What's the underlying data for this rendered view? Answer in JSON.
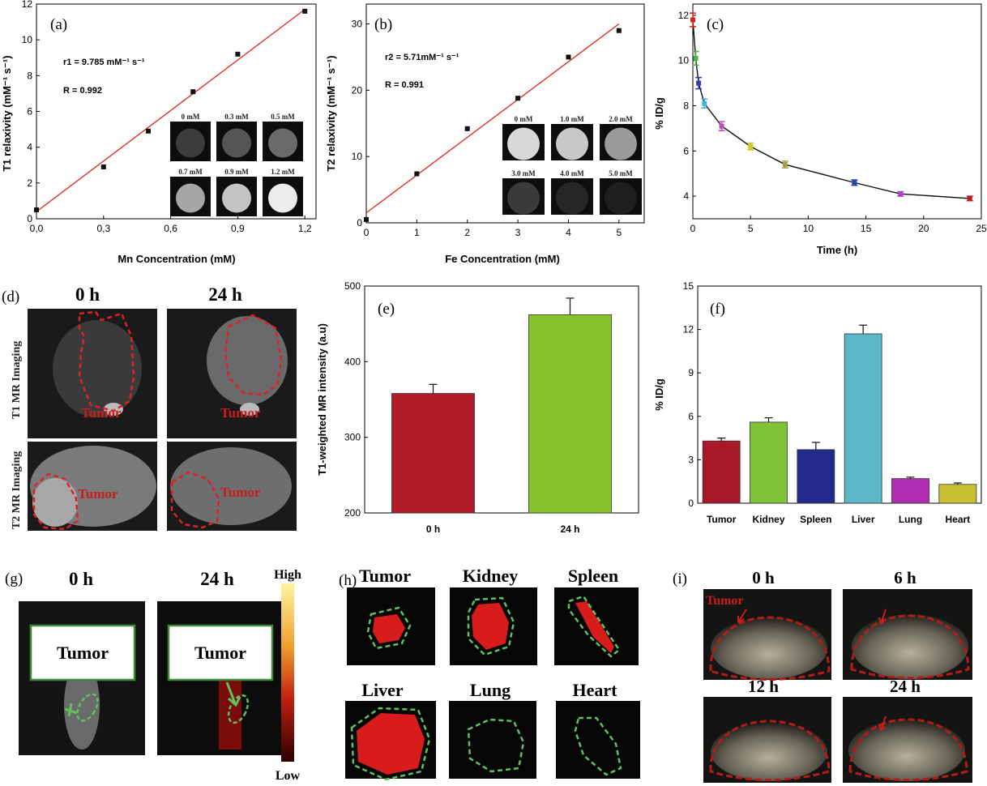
{
  "figure": {
    "panels": {
      "a": {
        "label": "(a)",
        "r_text": "r1 = 9.785 mM⁻¹ s⁻¹",
        "R_text": "R = 0.992",
        "insets": [
          "0 mM",
          "0.3 mM",
          "0.5 mM",
          "0.7 mM",
          "0.9 mM",
          "1.2 mM"
        ]
      },
      "b": {
        "label": "(b)",
        "r_text": "r2 = 5.71mM⁻¹ s⁻¹",
        "R_text": "R = 0.991",
        "insets": [
          "0 mM",
          "1.0 mM",
          "2.0 mM",
          "3.0 mM",
          "4.0 mM",
          "5.0 mM"
        ]
      },
      "c": {
        "label": "(c)"
      },
      "d": {
        "label": "(d)",
        "col0": "0 h",
        "col1": "24 h",
        "row0": "T1 MR Imaging",
        "row1": "T2 MR Imaging",
        "tumor": "Tumor"
      },
      "e": {
        "label": "(e)"
      },
      "f": {
        "label": "(f)"
      },
      "g": {
        "label": "(g)",
        "col0": "0 h",
        "col1": "24 h",
        "tumor": "Tumor",
        "high": "High",
        "low": "Low"
      },
      "h": {
        "label": "(h)",
        "organs": [
          "Tumor",
          "Kidney",
          "Spleen",
          "Liver",
          "Lung",
          "Heart"
        ]
      },
      "i": {
        "label": "(i)",
        "tumor": "Tumor",
        "times": [
          "0 h",
          "6 h",
          "12 h",
          "24 h"
        ]
      }
    }
  },
  "chart_data": [
    {
      "id": "a",
      "type": "scatter",
      "title": "",
      "xlabel": "Mn Concentration (mM)",
      "ylabel": "T1 relaxivity (mM⁻¹ s⁻¹)",
      "xlim": [
        0,
        1.25
      ],
      "ylim": [
        0,
        12
      ],
      "xticks": [
        0.0,
        0.3,
        0.6,
        0.9,
        1.2
      ],
      "xticklabels": [
        "0,0",
        "0,3",
        "0,6",
        "0,9",
        "1,2"
      ],
      "yticks": [
        0,
        2,
        4,
        6,
        8,
        10,
        12
      ],
      "x": [
        0,
        0.3,
        0.5,
        0.7,
        0.9,
        1.2
      ],
      "y": [
        0.5,
        2.9,
        4.9,
        7.1,
        9.2,
        11.6
      ],
      "fit": {
        "x": [
          0,
          1.2
        ],
        "y": [
          0.4,
          11.7
        ]
      }
    },
    {
      "id": "b",
      "type": "scatter",
      "title": "",
      "xlabel": "Fe Concentration (mM)",
      "ylabel": "T2 relaxivity (mM⁻¹ s⁻¹)",
      "xlim": [
        0,
        5.5
      ],
      "ylim": [
        0,
        33
      ],
      "xticks": [
        0,
        1,
        2,
        3,
        4,
        5
      ],
      "yticks": [
        0,
        10,
        20,
        30
      ],
      "x": [
        0,
        1,
        2,
        3,
        4,
        5
      ],
      "y": [
        0.5,
        7.4,
        14.2,
        18.8,
        25.0,
        29.0
      ],
      "fit": {
        "x": [
          0,
          5
        ],
        "y": [
          1.5,
          30.0
        ]
      }
    },
    {
      "id": "c",
      "type": "line",
      "title": "",
      "xlabel": "Time (h)",
      "ylabel": "% ID/g",
      "xlim": [
        0,
        25
      ],
      "ylim": [
        3,
        12.5
      ],
      "xticks": [
        0,
        5,
        10,
        15,
        20,
        25
      ],
      "yticks": [
        4,
        6,
        8,
        10,
        12
      ],
      "x": [
        0,
        0.25,
        0.5,
        1,
        2.5,
        5,
        8,
        14,
        18,
        24
      ],
      "y": [
        11.8,
        10.1,
        9.0,
        8.1,
        7.1,
        6.2,
        5.4,
        4.6,
        4.1,
        3.9
      ],
      "err": [
        0.3,
        0.3,
        0.25,
        0.2,
        0.2,
        0.15,
        0.15,
        0.12,
        0.1,
        0.1
      ],
      "colors": [
        "#d42020",
        "#4caf50",
        "#2e3ea8",
        "#45b4d8",
        "#c04ab8",
        "#c8c820",
        "#a8a040",
        "#2448a8",
        "#a848c0",
        "#b82020"
      ]
    },
    {
      "id": "e",
      "type": "bar",
      "title": "",
      "xlabel": "",
      "ylabel": "T1-weighted MR intensity (a.u)",
      "ylim": [
        200,
        500
      ],
      "yticks": [
        200,
        300,
        400,
        500
      ],
      "categories": [
        "0 h",
        "24 h"
      ],
      "values": [
        358,
        462
      ],
      "err": [
        12,
        22
      ],
      "colors": [
        "#b01c28",
        "#86c22a"
      ]
    },
    {
      "id": "f",
      "type": "bar",
      "title": "",
      "xlabel": "",
      "ylabel": "% ID/g",
      "ylim": [
        0,
        15
      ],
      "yticks": [
        0,
        3,
        6,
        9,
        12,
        15
      ],
      "categories": [
        "Tumor",
        "Kidney",
        "Spleen",
        "Liver",
        "Lung",
        "Heart"
      ],
      "values": [
        4.3,
        5.6,
        3.7,
        11.7,
        1.7,
        1.3
      ],
      "err": [
        0.2,
        0.3,
        0.5,
        0.6,
        0.1,
        0.1
      ],
      "colors": [
        "#a8182a",
        "#7fc23a",
        "#242a8c",
        "#5cb8c8",
        "#b02cb0",
        "#c8c030"
      ]
    }
  ]
}
